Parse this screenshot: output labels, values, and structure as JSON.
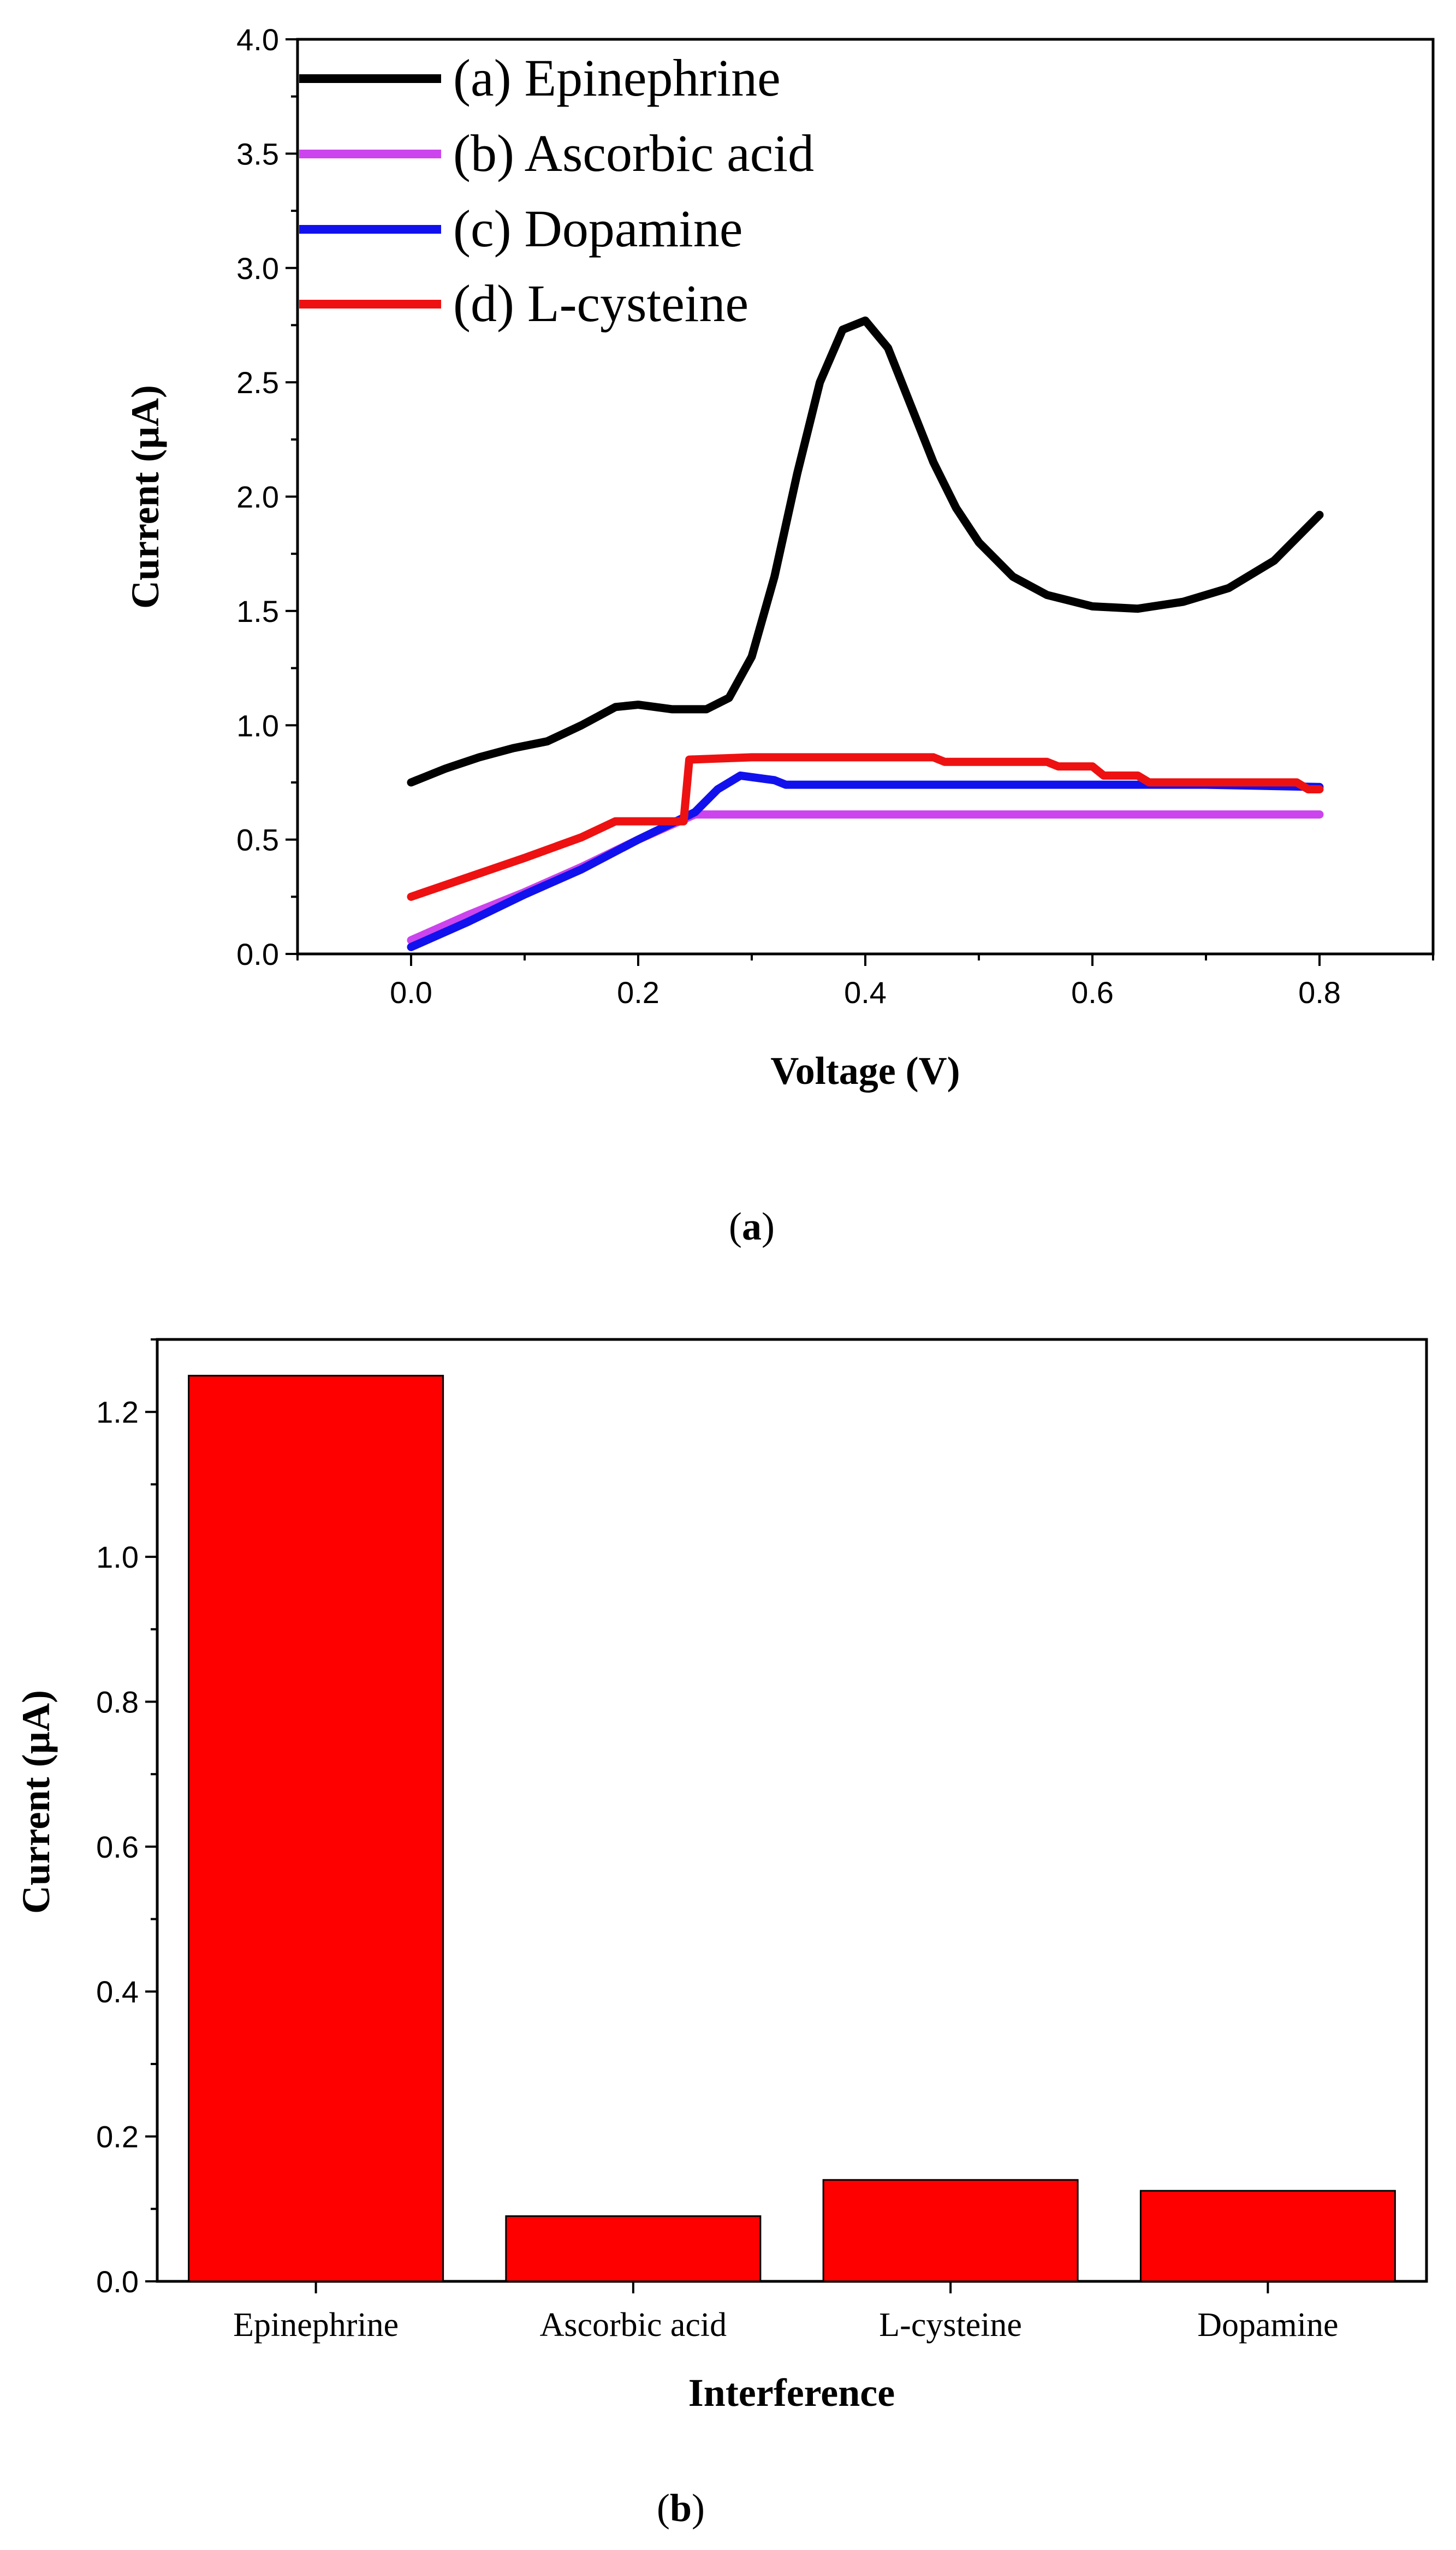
{
  "chart_data": [
    {
      "type": "line",
      "panel": "a",
      "caption": {
        "open": "(",
        "letter": "a",
        "close": ")"
      },
      "xlabel": "Voltage (V)",
      "ylabel": "Current (µA)",
      "xlim": [
        -0.1,
        0.9
      ],
      "ylim": [
        0,
        4.0
      ],
      "xticks": [
        0.0,
        0.2,
        0.4,
        0.6,
        0.8
      ],
      "xtick_labels": [
        "0.0",
        "0.2",
        "0.4",
        "0.6",
        "0.8"
      ],
      "yticks": [
        0.0,
        0.5,
        1.0,
        1.5,
        2.0,
        2.5,
        3.0,
        3.5,
        4.0
      ],
      "ytick_labels": [
        "0.0",
        "0.5",
        "1.0",
        "1.5",
        "2.0",
        "2.5",
        "3.0",
        "3.5",
        "4.0"
      ],
      "legend_position": "top-left",
      "series": [
        {
          "name": "(a) Epinephrine",
          "color": "#000000",
          "x": [
            0.0,
            0.03,
            0.06,
            0.09,
            0.12,
            0.15,
            0.18,
            0.2,
            0.23,
            0.26,
            0.28,
            0.3,
            0.32,
            0.34,
            0.36,
            0.38,
            0.4,
            0.42,
            0.44,
            0.46,
            0.48,
            0.5,
            0.53,
            0.56,
            0.6,
            0.64,
            0.68,
            0.72,
            0.76,
            0.8
          ],
          "y": [
            0.75,
            0.81,
            0.86,
            0.9,
            0.93,
            1.0,
            1.08,
            1.09,
            1.07,
            1.07,
            1.12,
            1.3,
            1.65,
            2.1,
            2.5,
            2.73,
            2.77,
            2.65,
            2.4,
            2.15,
            1.95,
            1.8,
            1.65,
            1.57,
            1.52,
            1.51,
            1.54,
            1.6,
            1.72,
            1.92
          ]
        },
        {
          "name": "(b) Ascorbic acid",
          "color": "#cc44ee",
          "x": [
            0.0,
            0.05,
            0.1,
            0.15,
            0.2,
            0.25,
            0.3,
            0.4,
            0.5,
            0.6,
            0.7,
            0.8
          ],
          "y": [
            0.06,
            0.17,
            0.27,
            0.38,
            0.5,
            0.61,
            0.61,
            0.61,
            0.61,
            0.61,
            0.61,
            0.61
          ]
        },
        {
          "name": "(c) Dopamine",
          "color": "#1111ee",
          "x": [
            0.0,
            0.05,
            0.1,
            0.15,
            0.2,
            0.25,
            0.27,
            0.29,
            0.32,
            0.33,
            0.4,
            0.5,
            0.6,
            0.7,
            0.8
          ],
          "y": [
            0.03,
            0.14,
            0.26,
            0.37,
            0.5,
            0.62,
            0.72,
            0.78,
            0.76,
            0.74,
            0.74,
            0.74,
            0.74,
            0.74,
            0.73
          ]
        },
        {
          "name": "(d) L-cysteine",
          "color": "#ee1111",
          "x": [
            0.0,
            0.1,
            0.15,
            0.18,
            0.24,
            0.245,
            0.3,
            0.46,
            0.47,
            0.56,
            0.57,
            0.6,
            0.61,
            0.64,
            0.65,
            0.78,
            0.79,
            0.8
          ],
          "y": [
            0.25,
            0.42,
            0.51,
            0.58,
            0.58,
            0.85,
            0.86,
            0.86,
            0.84,
            0.84,
            0.82,
            0.82,
            0.78,
            0.78,
            0.75,
            0.75,
            0.72,
            0.72
          ]
        }
      ]
    },
    {
      "type": "bar",
      "panel": "b",
      "caption": {
        "open": "(",
        "letter": "b",
        "close": ")"
      },
      "xlabel": "Interference",
      "ylabel": "Current (µA)",
      "categories": [
        "Epinephrine",
        "Ascorbic acid",
        "L-cysteine",
        "Dopamine"
      ],
      "values": [
        1.25,
        0.09,
        0.14,
        0.125
      ],
      "ylim": [
        0,
        1.3
      ],
      "yticks": [
        0.0,
        0.2,
        0.4,
        0.6,
        0.8,
        1.0,
        1.2
      ],
      "ytick_labels": [
        "0.0",
        "0.2",
        "0.4",
        "0.6",
        "0.8",
        "1.0",
        "1.2"
      ],
      "bar_color": "#ff0000"
    }
  ]
}
